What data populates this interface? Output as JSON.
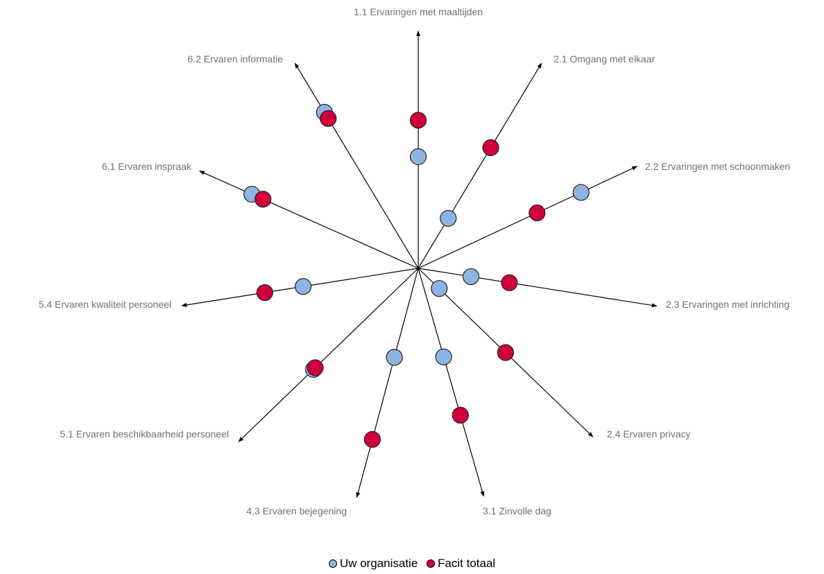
{
  "chart_data": {
    "type": "radar-star",
    "axes": [
      "1.1 Ervaringen met maaltijden",
      "2.1 Omgang met elkaar",
      "2.2 Ervaringen met schoonmaken",
      "2.3 Ervaringen met inrichting",
      "2.4 Ervaren privacy",
      "3.1 Zinvolle dag",
      "4.3 Ervaren bejegening",
      "5.1 Ervaren beschikbaarheid personeel",
      "5.4 Ervaren kwaliteit personeel",
      "6.1 Ervaren inspraak",
      "6.2 Ervaren informatie"
    ],
    "series": [
      {
        "name": "Uw organisatie",
        "color": "#8db4e3",
        "values": [
          0.46,
          0.24,
          0.74,
          0.22,
          0.12,
          0.38,
          0.38,
          0.6,
          0.48,
          0.75,
          0.75
        ]
      },
      {
        "name": "Facit totaal",
        "color": "#d0003c",
        "values": [
          0.61,
          0.58,
          0.54,
          0.38,
          0.5,
          0.63,
          0.73,
          0.59,
          0.64,
          0.7,
          0.72
        ]
      }
    ],
    "legend_position": "bottom"
  }
}
